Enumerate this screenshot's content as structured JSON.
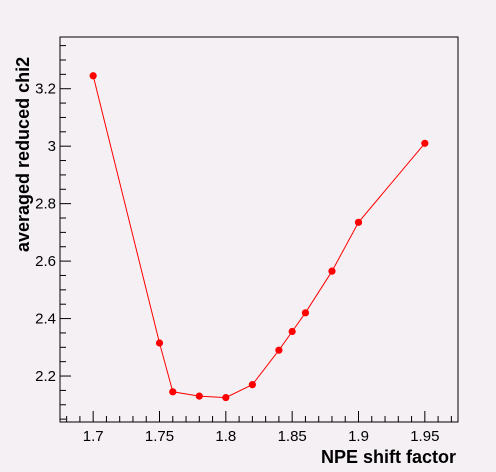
{
  "chart_data": {
    "type": "line",
    "title": "",
    "xlabel": "NPE shift factor",
    "ylabel": "averaged reduced chi2",
    "xlim": [
      1.675,
      1.975
    ],
    "ylim": [
      2.04,
      3.38
    ],
    "x_ticks": [
      "1.7",
      "1.75",
      "1.8",
      "1.85",
      "1.9",
      "1.95"
    ],
    "y_ticks": [
      "2.2",
      "2.4",
      "2.6",
      "2.8",
      "3",
      "3.2"
    ],
    "grid": false,
    "legend": "none",
    "series": [
      {
        "color": "#ff0000",
        "marker": "circle",
        "x": [
          1.7,
          1.75,
          1.76,
          1.78,
          1.8,
          1.82,
          1.84,
          1.85,
          1.86,
          1.88,
          1.9,
          1.95
        ],
        "y": [
          3.245,
          2.315,
          2.145,
          2.13,
          2.125,
          2.17,
          2.29,
          2.355,
          2.42,
          2.565,
          2.735,
          3.01
        ]
      }
    ]
  }
}
